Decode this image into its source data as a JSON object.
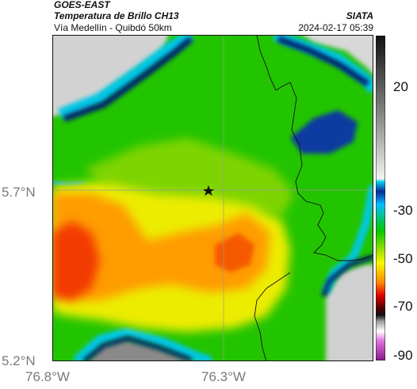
{
  "header": {
    "satellite": "GOES-EAST",
    "product": "Temperatura de Brillo CH13",
    "route": "Vía Medellín - Quibdó 50km",
    "organization": "SIATA",
    "timestamp": "2024-02-17 05:39"
  },
  "map": {
    "latitude_labels": [
      "5.7°N",
      "5.2°N"
    ],
    "longitude_labels": [
      "76.8°W",
      "76.3°W"
    ],
    "marker_icon": "star-icon",
    "colors": {
      "cold_cloud": "#00207a",
      "cloud_edge": "#00c8e6",
      "green": "#19c800",
      "yellow": "#f4f200",
      "orange": "#ff9a00",
      "red": "#f03000",
      "clear_gray": "#c8c8c8"
    }
  },
  "colorbar": {
    "tick_labels": [
      "20",
      "-30",
      "-50",
      "-70",
      "-90"
    ]
  }
}
